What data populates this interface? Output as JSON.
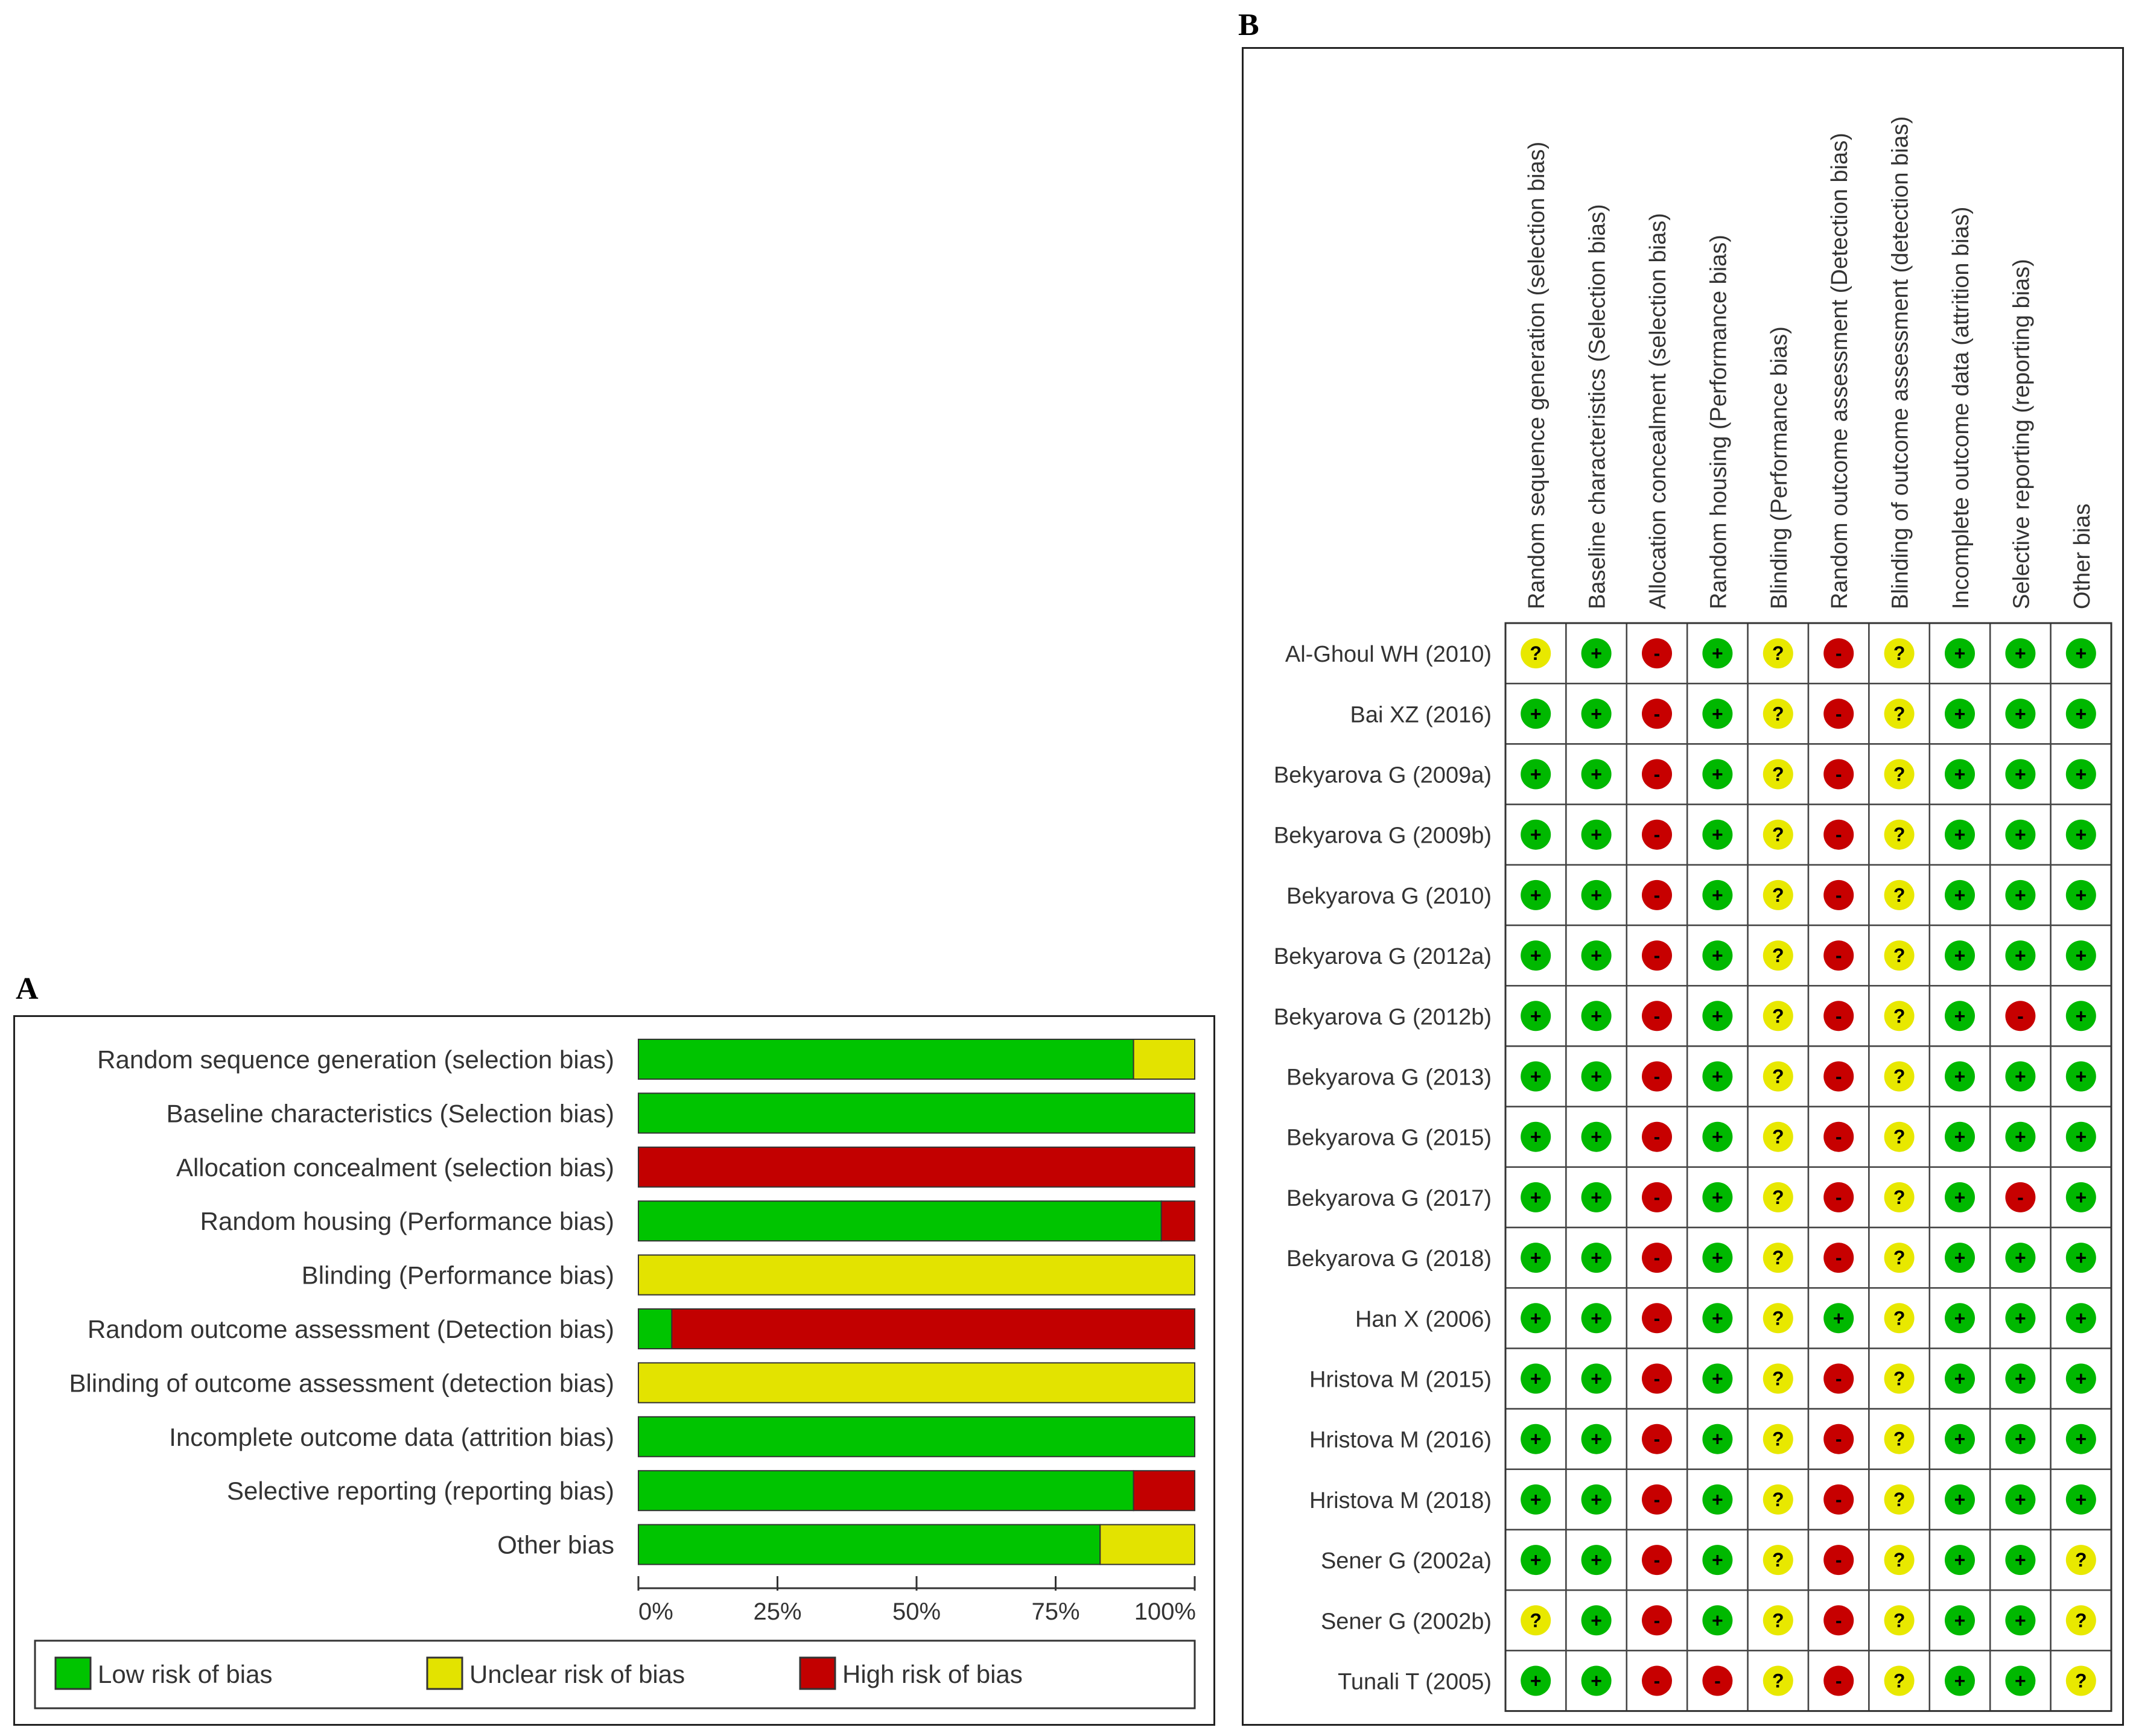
{
  "panel_a_label": "A",
  "panel_b_label": "B",
  "colors": {
    "low": "#00c400",
    "unclear": "#e3e300",
    "high": "#c20000",
    "low_dot": "#00b800",
    "unclear_dot": "#e8e800",
    "high_dot": "#c70000"
  },
  "chart_data": [
    {
      "type": "bar",
      "orientation": "horizontal-stacked-percent",
      "categories": [
        "Random sequence generation (selection bias)",
        "Baseline characteristics (Selection bias)",
        "Allocation concealment (selection bias)",
        "Random housing (Performance bias)",
        "Blinding (Performance bias)",
        "Random outcome assessment (Detection bias)",
        "Blinding of outcome assessment (detection bias)",
        "Incomplete outcome data (attrition bias)",
        "Selective reporting (reporting bias)",
        "Other bias"
      ],
      "series": [
        {
          "name": "Low risk of bias",
          "key": "low",
          "values": [
            89,
            100,
            0,
            94,
            0,
            6,
            0,
            100,
            89,
            83
          ]
        },
        {
          "name": "Unclear risk of bias",
          "key": "unclear",
          "values": [
            11,
            0,
            0,
            0,
            100,
            0,
            100,
            0,
            0,
            17
          ]
        },
        {
          "name": "High risk of bias",
          "key": "high",
          "values": [
            0,
            0,
            100,
            6,
            0,
            94,
            0,
            0,
            11,
            0
          ]
        }
      ],
      "xlim": [
        0,
        100
      ],
      "ticks": [
        "0%",
        "25%",
        "50%",
        "75%",
        "100%"
      ],
      "legend": [
        "Low risk of bias",
        "Unclear risk of bias",
        "High risk of bias"
      ],
      "legend_position": "bottom"
    },
    {
      "type": "table",
      "columns": [
        "Random sequence generation (selection bias)",
        "Baseline characteristics (Selection bias)",
        "Allocation concealment (selection bias)",
        "Random housing (Performance bias)",
        "Blinding (Performance bias)",
        "Random outcome assessment (Detection bias)",
        "Blinding of outcome assessment (detection bias)",
        "Incomplete outcome data (attrition bias)",
        "Selective reporting (reporting bias)",
        "Other bias"
      ],
      "symbols": {
        "low": "+",
        "unclear": "?",
        "high": "-"
      },
      "rows": [
        {
          "study": "Al-Ghoul WH (2010)",
          "ratings": [
            "unclear",
            "low",
            "high",
            "low",
            "unclear",
            "high",
            "unclear",
            "low",
            "low",
            "low"
          ]
        },
        {
          "study": "Bai XZ (2016)",
          "ratings": [
            "low",
            "low",
            "high",
            "low",
            "unclear",
            "high",
            "unclear",
            "low",
            "low",
            "low"
          ]
        },
        {
          "study": "Bekyarova G (2009a)",
          "ratings": [
            "low",
            "low",
            "high",
            "low",
            "unclear",
            "high",
            "unclear",
            "low",
            "low",
            "low"
          ]
        },
        {
          "study": "Bekyarova G (2009b)",
          "ratings": [
            "low",
            "low",
            "high",
            "low",
            "unclear",
            "high",
            "unclear",
            "low",
            "low",
            "low"
          ]
        },
        {
          "study": "Bekyarova G (2010)",
          "ratings": [
            "low",
            "low",
            "high",
            "low",
            "unclear",
            "high",
            "unclear",
            "low",
            "low",
            "low"
          ]
        },
        {
          "study": "Bekyarova G (2012a)",
          "ratings": [
            "low",
            "low",
            "high",
            "low",
            "unclear",
            "high",
            "unclear",
            "low",
            "low",
            "low"
          ]
        },
        {
          "study": "Bekyarova G (2012b)",
          "ratings": [
            "low",
            "low",
            "high",
            "low",
            "unclear",
            "high",
            "unclear",
            "low",
            "high",
            "low"
          ]
        },
        {
          "study": "Bekyarova G (2013)",
          "ratings": [
            "low",
            "low",
            "high",
            "low",
            "unclear",
            "high",
            "unclear",
            "low",
            "low",
            "low"
          ]
        },
        {
          "study": "Bekyarova G (2015)",
          "ratings": [
            "low",
            "low",
            "high",
            "low",
            "unclear",
            "high",
            "unclear",
            "low",
            "low",
            "low"
          ]
        },
        {
          "study": "Bekyarova G (2017)",
          "ratings": [
            "low",
            "low",
            "high",
            "low",
            "unclear",
            "high",
            "unclear",
            "low",
            "high",
            "low"
          ]
        },
        {
          "study": "Bekyarova G (2018)",
          "ratings": [
            "low",
            "low",
            "high",
            "low",
            "unclear",
            "high",
            "unclear",
            "low",
            "low",
            "low"
          ]
        },
        {
          "study": "Han X (2006)",
          "ratings": [
            "low",
            "low",
            "high",
            "low",
            "unclear",
            "low",
            "unclear",
            "low",
            "low",
            "low"
          ]
        },
        {
          "study": "Hristova M (2015)",
          "ratings": [
            "low",
            "low",
            "high",
            "low",
            "unclear",
            "high",
            "unclear",
            "low",
            "low",
            "low"
          ]
        },
        {
          "study": "Hristova M (2016)",
          "ratings": [
            "low",
            "low",
            "high",
            "low",
            "unclear",
            "high",
            "unclear",
            "low",
            "low",
            "low"
          ]
        },
        {
          "study": "Hristova M (2018)",
          "ratings": [
            "low",
            "low",
            "high",
            "low",
            "unclear",
            "high",
            "unclear",
            "low",
            "low",
            "low"
          ]
        },
        {
          "study": "Sener G (2002a)",
          "ratings": [
            "low",
            "low",
            "high",
            "low",
            "unclear",
            "high",
            "unclear",
            "low",
            "low",
            "unclear"
          ]
        },
        {
          "study": "Sener G (2002b)",
          "ratings": [
            "unclear",
            "low",
            "high",
            "low",
            "unclear",
            "high",
            "unclear",
            "low",
            "low",
            "unclear"
          ]
        },
        {
          "study": "Tunali T (2005)",
          "ratings": [
            "low",
            "low",
            "high",
            "high",
            "unclear",
            "high",
            "unclear",
            "low",
            "low",
            "unclear"
          ]
        }
      ]
    }
  ]
}
